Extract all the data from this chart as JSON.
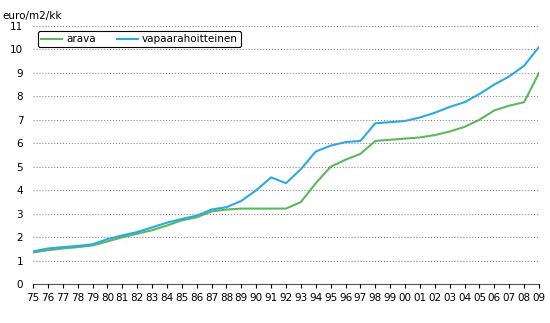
{
  "years": [
    1975,
    1976,
    1977,
    1978,
    1979,
    1980,
    1981,
    1982,
    1983,
    1984,
    1985,
    1986,
    1987,
    1988,
    1989,
    1990,
    1991,
    1992,
    1993,
    1994,
    1995,
    1996,
    1997,
    1998,
    1999,
    2000,
    2001,
    2002,
    2003,
    2004,
    2005,
    2006,
    2007,
    2008,
    2009
  ],
  "arava": [
    1.35,
    1.45,
    1.52,
    1.58,
    1.65,
    1.82,
    2.0,
    2.15,
    2.3,
    2.5,
    2.72,
    2.85,
    3.1,
    3.18,
    3.22,
    3.22,
    3.22,
    3.22,
    3.5,
    4.3,
    5.0,
    5.3,
    5.55,
    6.1,
    6.15,
    6.2,
    6.25,
    6.35,
    6.5,
    6.7,
    7.0,
    7.4,
    7.6,
    7.75,
    9.0
  ],
  "vapaarahoitteinen": [
    1.4,
    1.52,
    1.58,
    1.63,
    1.7,
    1.92,
    2.08,
    2.22,
    2.42,
    2.62,
    2.78,
    2.92,
    3.18,
    3.28,
    3.55,
    4.0,
    4.55,
    4.3,
    4.9,
    5.65,
    5.9,
    6.05,
    6.1,
    6.85,
    6.9,
    6.95,
    7.1,
    7.3,
    7.55,
    7.75,
    8.1,
    8.5,
    8.85,
    9.3,
    10.1
  ],
  "arava_color": "#5cb85c",
  "vapaarahoitteinen_color": "#29abe2",
  "ylabel": "euro/m2/kk",
  "ylim": [
    0,
    11
  ],
  "yticks": [
    0,
    1,
    2,
    3,
    4,
    5,
    6,
    7,
    8,
    9,
    10,
    11
  ],
  "legend_arava": "arava",
  "legend_vapaarahoitteinen": "vapaarahoitteinen",
  "bg_color": "#ffffff",
  "grid_color": "#888888",
  "line_width": 1.5,
  "title_fontsize": 8,
  "tick_fontsize": 7.5
}
